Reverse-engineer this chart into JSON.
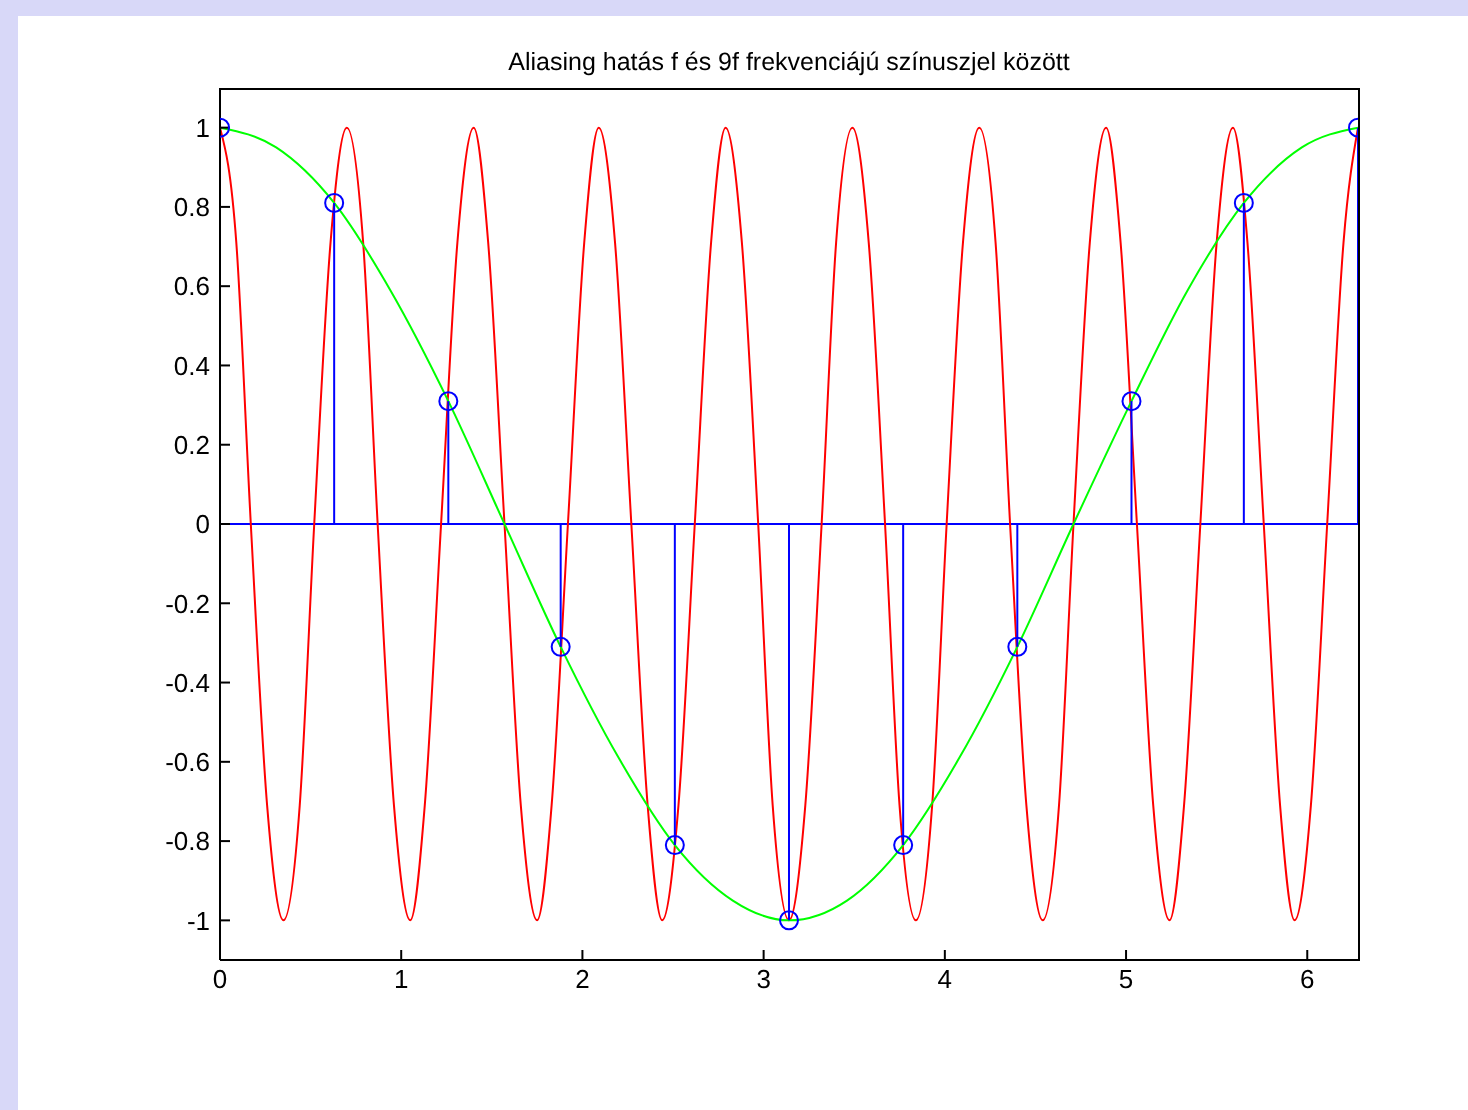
{
  "chart_data": {
    "type": "line",
    "title": "Aliasing hatás f és 9f frekvenciájú színuszjel között",
    "xlim": [
      0,
      6.28
    ],
    "ylim": [
      -1.1,
      1.1
    ],
    "xticks": [
      0,
      1,
      2,
      3,
      4,
      5,
      6
    ],
    "yticks": [
      -1,
      -0.8,
      -0.6,
      -0.4,
      -0.2,
      0,
      0.2,
      0.4,
      0.6,
      0.8,
      1
    ],
    "grid": false,
    "series": [
      {
        "color": "#ff0000",
        "x": [
          0,
          0.09,
          0.17,
          0.26,
          0.35,
          0.44,
          0.52,
          0.61,
          0.7,
          0.79,
          0.87,
          0.96,
          1.05,
          1.13,
          1.22,
          1.31,
          1.4,
          1.48,
          1.57,
          1.66,
          1.75,
          1.83,
          1.92,
          2.01,
          2.09,
          2.18,
          2.27,
          2.36,
          2.44,
          2.53,
          2.62,
          2.71,
          2.79,
          2.88,
          2.97,
          3.05,
          3.14,
          3.23,
          3.32,
          3.4,
          3.49,
          3.58,
          3.67,
          3.75,
          3.84,
          3.93,
          4.01,
          4.1,
          4.19,
          4.28,
          4.36,
          4.45,
          4.54,
          4.63,
          4.71,
          4.8,
          4.89,
          4.97,
          5.06,
          5.15,
          5.24,
          5.32,
          5.41,
          5.5,
          5.59,
          5.67,
          5.76,
          5.85,
          5.93,
          6.02,
          6.11,
          6.2,
          6.28
        ],
        "values": [
          1,
          0.71,
          0,
          -0.71,
          -1,
          -0.71,
          0,
          0.71,
          1,
          0.71,
          0,
          -0.71,
          -1,
          -0.71,
          0,
          0.71,
          1,
          0.71,
          0,
          -0.71,
          -1,
          -0.71,
          0,
          0.71,
          1,
          0.71,
          0,
          -0.71,
          -1,
          -0.71,
          0,
          0.71,
          1,
          0.71,
          0,
          -0.71,
          -1,
          -0.71,
          0,
          0.71,
          1,
          0.71,
          0,
          -0.71,
          -1,
          -0.71,
          0,
          0.71,
          1,
          0.71,
          0,
          -0.71,
          -1,
          -0.71,
          0,
          0.71,
          1,
          0.71,
          0,
          -0.71,
          -1,
          -0.71,
          0,
          0.71,
          1,
          0.71,
          0,
          -0.71,
          -1,
          -0.71,
          0,
          0.71,
          1
        ]
      },
      {
        "color": "#00ff00",
        "x": [
          0,
          0.31,
          0.63,
          0.94,
          1.26,
          1.57,
          1.88,
          2.2,
          2.51,
          2.83,
          3.14,
          3.46,
          3.77,
          4.08,
          4.4,
          4.71,
          5.03,
          5.34,
          5.65,
          5.97,
          6.28
        ],
        "values": [
          1,
          0.95,
          0.81,
          0.59,
          0.31,
          0,
          -0.31,
          -0.59,
          -0.81,
          -0.95,
          -1,
          -0.95,
          -0.81,
          -0.59,
          -0.31,
          0,
          0.31,
          0.59,
          0.81,
          0.95,
          1
        ]
      },
      {
        "type": "lollipop",
        "color": "#0000ff",
        "marker": "circle",
        "x": [
          0,
          0.63,
          1.26,
          1.88,
          2.51,
          3.14,
          3.77,
          4.4,
          5.03,
          5.65,
          6.28
        ],
        "values": [
          1,
          0.81,
          0.31,
          -0.31,
          -0.81,
          -1,
          -0.81,
          -0.31,
          0.31,
          0.81,
          1
        ]
      }
    ],
    "ref_lines": [
      {
        "axis": "y",
        "value": 0,
        "color": "#0000ff"
      }
    ]
  }
}
